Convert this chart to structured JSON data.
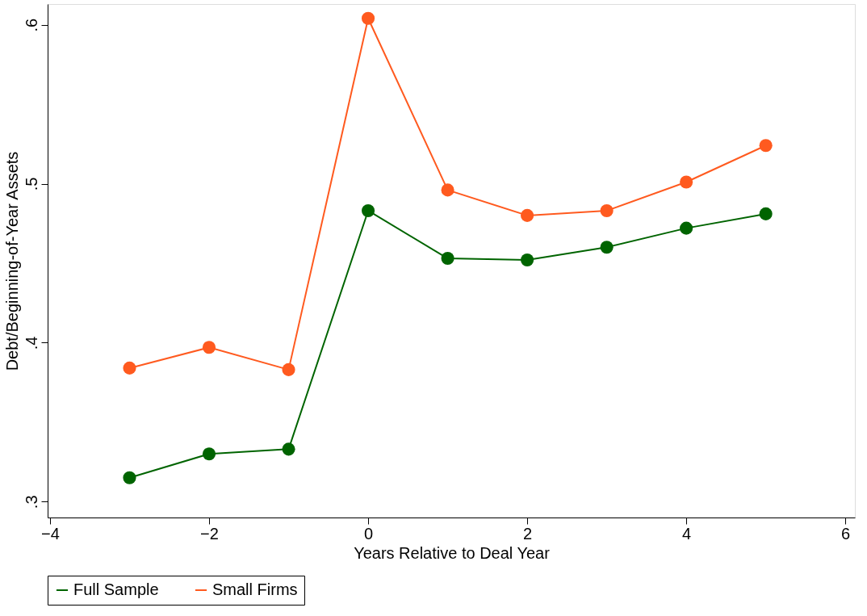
{
  "chart_data": {
    "type": "line",
    "xlabel": "Years Relative to Deal Year",
    "ylabel": "Debt/Beginning-of-Year Assets",
    "x": [
      -3,
      -2,
      -1,
      0,
      1,
      2,
      3,
      4,
      5
    ],
    "series": [
      {
        "name": "Full Sample",
        "color": "#006400",
        "values": [
          0.315,
          0.33,
          0.333,
          0.483,
          0.453,
          0.452,
          0.46,
          0.472,
          0.481
        ]
      },
      {
        "name": "Small Firms",
        "color": "#ff5a1f",
        "values": [
          0.384,
          0.397,
          0.383,
          0.604,
          0.496,
          0.48,
          0.483,
          0.501,
          0.524
        ]
      }
    ],
    "xlim": [
      -4.03,
      6.12
    ],
    "xticks": [
      -4,
      -2,
      0,
      2,
      4,
      6
    ],
    "ylim": [
      0.29,
      0.613
    ],
    "yticks": [
      {
        "value": 0.3,
        "label": ".3"
      },
      {
        "value": 0.4,
        "label": ".4"
      },
      {
        "value": 0.5,
        "label": ".5"
      },
      {
        "value": 0.6,
        "label": ".6"
      }
    ],
    "grid": false,
    "legend": "bottom",
    "marker": "circle",
    "line_style": "solid"
  }
}
